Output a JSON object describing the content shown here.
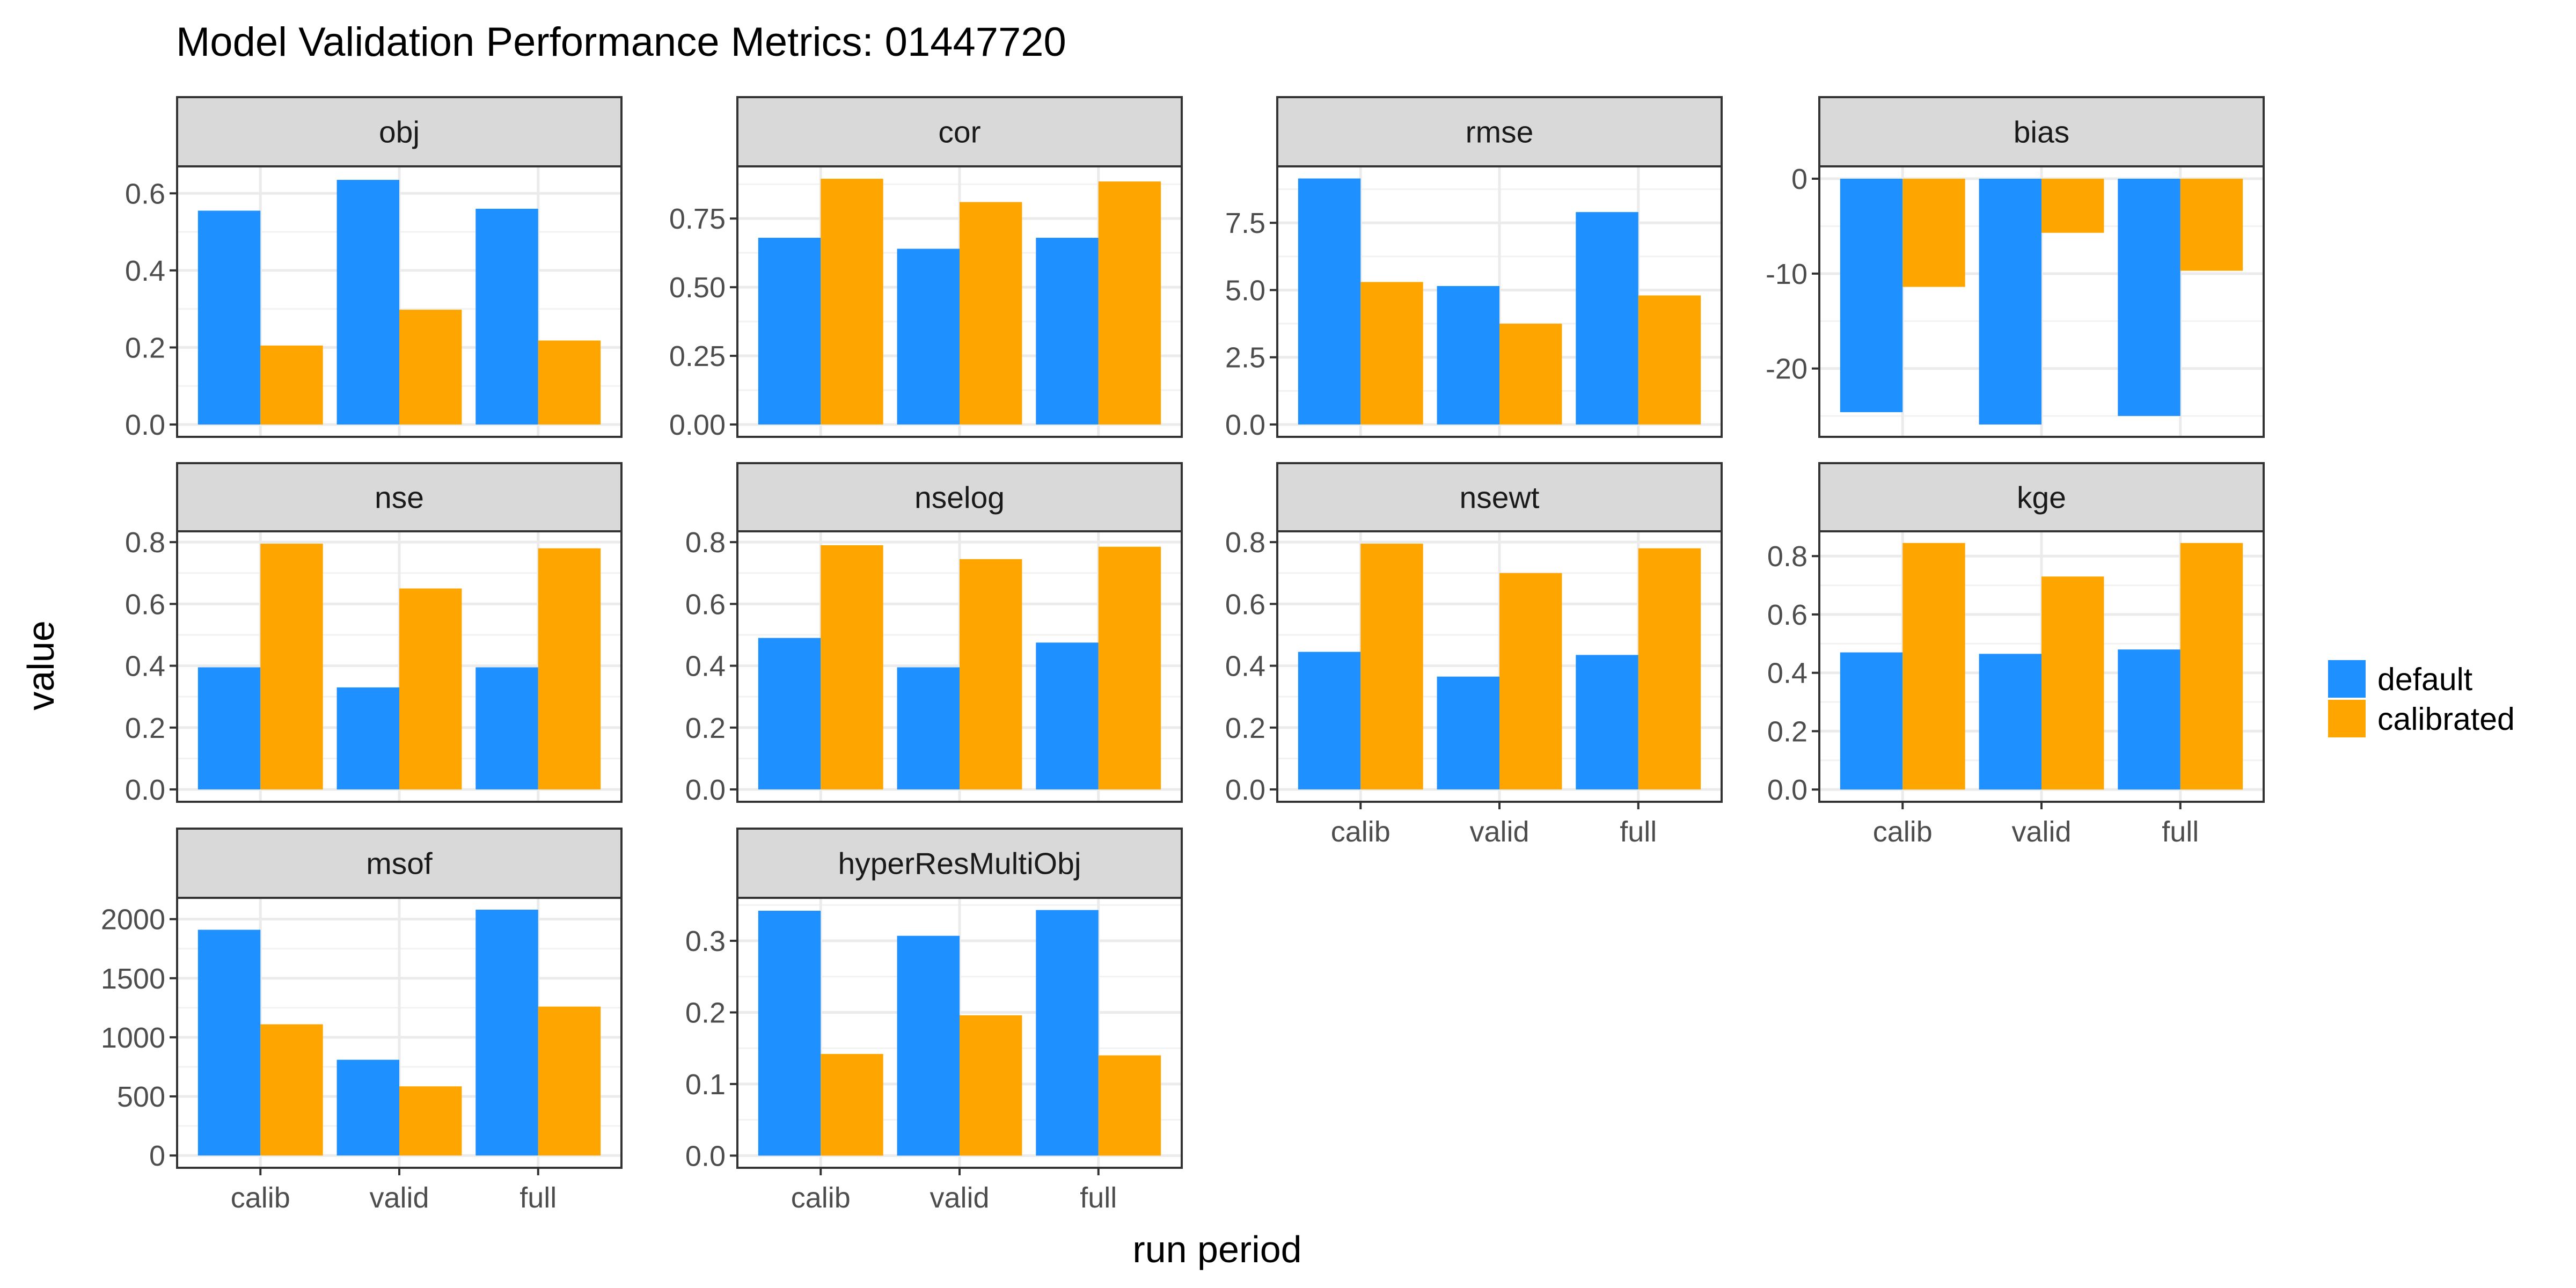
{
  "chart_data": {
    "type": "bar",
    "title": "Model Validation Performance Metrics: 01447720",
    "xlabel": "run period",
    "ylabel": "value",
    "categories": [
      "calib",
      "valid",
      "full"
    ],
    "legend": {
      "position": "right",
      "entries": [
        {
          "name": "default",
          "color": "#1E90FF"
        },
        {
          "name": "calibrated",
          "color": "#FFA500"
        }
      ]
    },
    "grid": true,
    "panels": [
      {
        "name": "obj",
        "ylim": [
          -0.032,
          0.67
        ],
        "yticks": [
          0.0,
          0.2,
          0.4,
          0.6
        ],
        "tick_labels": [
          "0.0",
          "0.2",
          "0.4",
          "0.6"
        ],
        "series": [
          {
            "name": "default",
            "values": [
              0.555,
              0.635,
              0.56
            ]
          },
          {
            "name": "calibrated",
            "values": [
              0.205,
              0.298,
              0.218
            ]
          }
        ]
      },
      {
        "name": "cor",
        "ylim": [
          -0.045,
          0.94
        ],
        "yticks": [
          0.0,
          0.25,
          0.5,
          0.75
        ],
        "tick_labels": [
          "0.00",
          "0.25",
          "0.50",
          "0.75"
        ],
        "series": [
          {
            "name": "default",
            "values": [
              0.68,
              0.64,
              0.68
            ]
          },
          {
            "name": "calibrated",
            "values": [
              0.895,
              0.81,
              0.885
            ]
          }
        ]
      },
      {
        "name": "rmse",
        "ylim": [
          -0.46,
          9.6
        ],
        "yticks": [
          0.0,
          2.5,
          5.0,
          7.5
        ],
        "tick_labels": [
          "0.0",
          "2.5",
          "5.0",
          "7.5"
        ],
        "series": [
          {
            "name": "default",
            "values": [
              9.15,
              5.15,
              7.9
            ]
          },
          {
            "name": "calibrated",
            "values": [
              5.3,
              3.75,
              4.8
            ]
          }
        ]
      },
      {
        "name": "bias",
        "ylim": [
          -27.2,
          1.3
        ],
        "yticks": [
          -20,
          -10,
          0
        ],
        "tick_labels": [
          "-20",
          "-10",
          "0"
        ],
        "series": [
          {
            "name": "default",
            "values": [
              -24.6,
              -25.9,
              -25.0
            ]
          },
          {
            "name": "calibrated",
            "values": [
              -11.4,
              -5.7,
              -9.7
            ]
          }
        ]
      },
      {
        "name": "nse",
        "ylim": [
          -0.04,
          0.835
        ],
        "yticks": [
          0.0,
          0.2,
          0.4,
          0.6,
          0.8
        ],
        "tick_labels": [
          "0.0",
          "0.2",
          "0.4",
          "0.6",
          "0.8"
        ],
        "series": [
          {
            "name": "default",
            "values": [
              0.395,
              0.33,
              0.395
            ]
          },
          {
            "name": "calibrated",
            "values": [
              0.795,
              0.65,
              0.78
            ]
          }
        ]
      },
      {
        "name": "nselog",
        "ylim": [
          -0.04,
          0.835
        ],
        "yticks": [
          0.0,
          0.2,
          0.4,
          0.6,
          0.8
        ],
        "tick_labels": [
          "0.0",
          "0.2",
          "0.4",
          "0.6",
          "0.8"
        ],
        "series": [
          {
            "name": "default",
            "values": [
              0.49,
              0.395,
              0.475
            ]
          },
          {
            "name": "calibrated",
            "values": [
              0.79,
              0.745,
              0.785
            ]
          }
        ]
      },
      {
        "name": "nsewt",
        "ylim": [
          -0.04,
          0.835
        ],
        "yticks": [
          0.0,
          0.2,
          0.4,
          0.6,
          0.8
        ],
        "tick_labels": [
          "0.0",
          "0.2",
          "0.4",
          "0.6",
          "0.8"
        ],
        "series": [
          {
            "name": "default",
            "values": [
              0.445,
              0.365,
              0.435
            ]
          },
          {
            "name": "calibrated",
            "values": [
              0.795,
              0.7,
              0.78
            ]
          }
        ]
      },
      {
        "name": "kge",
        "ylim": [
          -0.042,
          0.885
        ],
        "yticks": [
          0.0,
          0.2,
          0.4,
          0.6,
          0.8
        ],
        "tick_labels": [
          "0.0",
          "0.2",
          "0.4",
          "0.6",
          "0.8"
        ],
        "series": [
          {
            "name": "default",
            "values": [
              0.47,
              0.465,
              0.48
            ]
          },
          {
            "name": "calibrated",
            "values": [
              0.845,
              0.73,
              0.845
            ]
          }
        ]
      },
      {
        "name": "msof",
        "ylim": [
          -104,
          2180
        ],
        "yticks": [
          0,
          500,
          1000,
          1500,
          2000
        ],
        "tick_labels": [
          "0",
          "500",
          "1000",
          "1500",
          "2000"
        ],
        "series": [
          {
            "name": "default",
            "values": [
              1910,
              810,
              2080
            ]
          },
          {
            "name": "calibrated",
            "values": [
              1110,
              585,
              1260
            ]
          }
        ]
      },
      {
        "name": "hyperResMultiObj",
        "ylim": [
          -0.017,
          0.36
        ],
        "yticks": [
          0.0,
          0.1,
          0.2,
          0.3
        ],
        "tick_labels": [
          "0.0",
          "0.1",
          "0.2",
          "0.3"
        ],
        "series": [
          {
            "name": "default",
            "values": [
              0.342,
              0.307,
              0.343
            ]
          },
          {
            "name": "calibrated",
            "values": [
              0.142,
              0.196,
              0.14
            ]
          }
        ]
      }
    ]
  }
}
